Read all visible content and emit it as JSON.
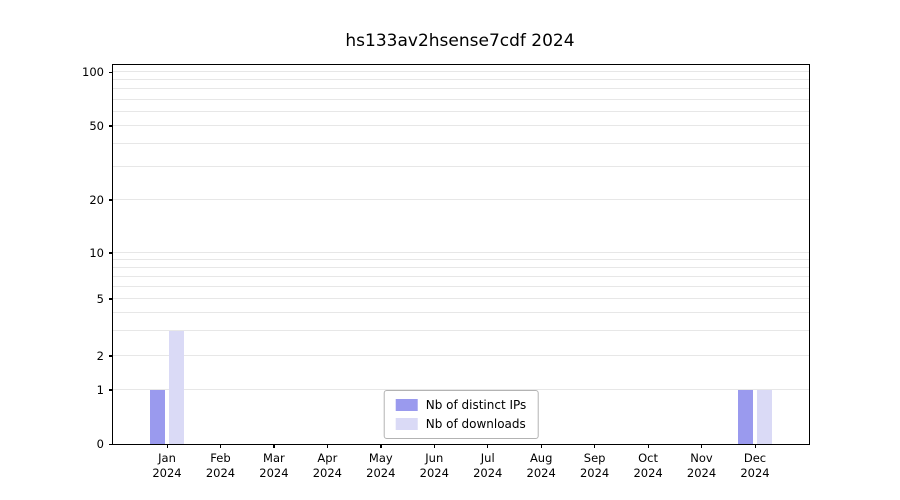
{
  "chart_data": {
    "type": "bar",
    "title": "hs133av2hsense7cdf 2024",
    "categories": [
      "Jan",
      "Feb",
      "Mar",
      "Apr",
      "May",
      "Jun",
      "Jul",
      "Aug",
      "Sep",
      "Oct",
      "Nov",
      "Dec"
    ],
    "category_year": "2024",
    "series": [
      {
        "name": "Nb of distinct IPs",
        "color": "#9a9aee",
        "values": [
          1,
          0,
          0,
          0,
          0,
          0,
          0,
          0,
          0,
          0,
          0,
          1
        ]
      },
      {
        "name": "Nb of downloads",
        "color": "#dadaf6",
        "values": [
          3,
          0,
          0,
          0,
          0,
          0,
          0,
          0,
          0,
          0,
          0,
          1
        ]
      }
    ],
    "yscale": "symlog",
    "ylim": [
      0,
      110
    ],
    "yticks": [
      0,
      1,
      2,
      5,
      10,
      20,
      50,
      100
    ],
    "y_gridlines": [
      1,
      2,
      3,
      4,
      5,
      6,
      7,
      8,
      9,
      10,
      20,
      30,
      40,
      50,
      60,
      70,
      80,
      90,
      100
    ],
    "grid": true,
    "legend_position": "lower center"
  }
}
